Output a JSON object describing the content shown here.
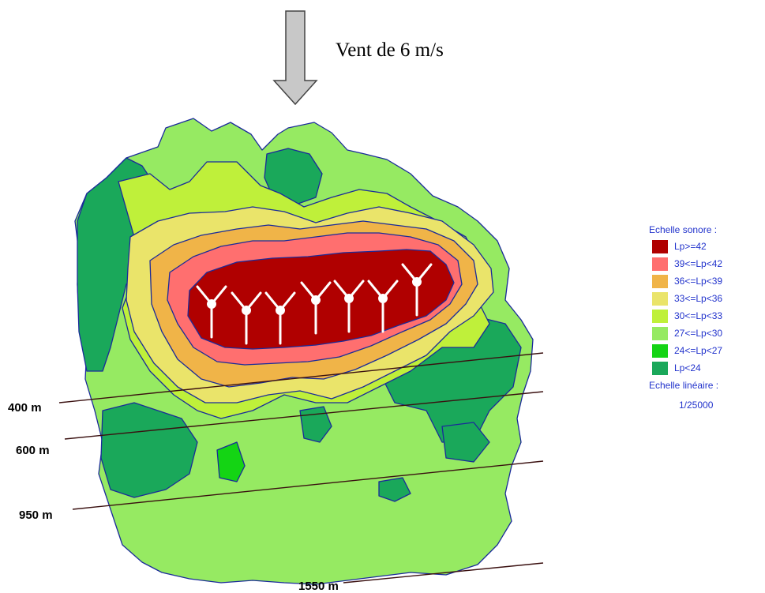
{
  "wind": {
    "label": "Vent de 6 m/s"
  },
  "distances": [
    "400 m",
    "600 m",
    "950 m",
    "1550 m"
  ],
  "legend": {
    "title": "Echelle sonore :",
    "items": [
      {
        "label": "Lp>=42",
        "color": "#b00000"
      },
      {
        "label": "39<=Lp<42",
        "color": "#ff6f6f"
      },
      {
        "label": "36<=Lp<39",
        "color": "#f0b448"
      },
      {
        "label": "33<=Lp<36",
        "color": "#eae46a"
      },
      {
        "label": "30<=Lp<33",
        "color": "#bff03a"
      },
      {
        "label": "27<=Lp<30",
        "color": "#96ea62"
      },
      {
        "label": "24<=Lp<27",
        "color": "#14d414"
      },
      {
        "label": "Lp<24",
        "color": "#1aa85a"
      }
    ],
    "scale_title": "Echelle linéaire :",
    "scale_value": "1/25000"
  },
  "turbines": {
    "count": 7
  }
}
